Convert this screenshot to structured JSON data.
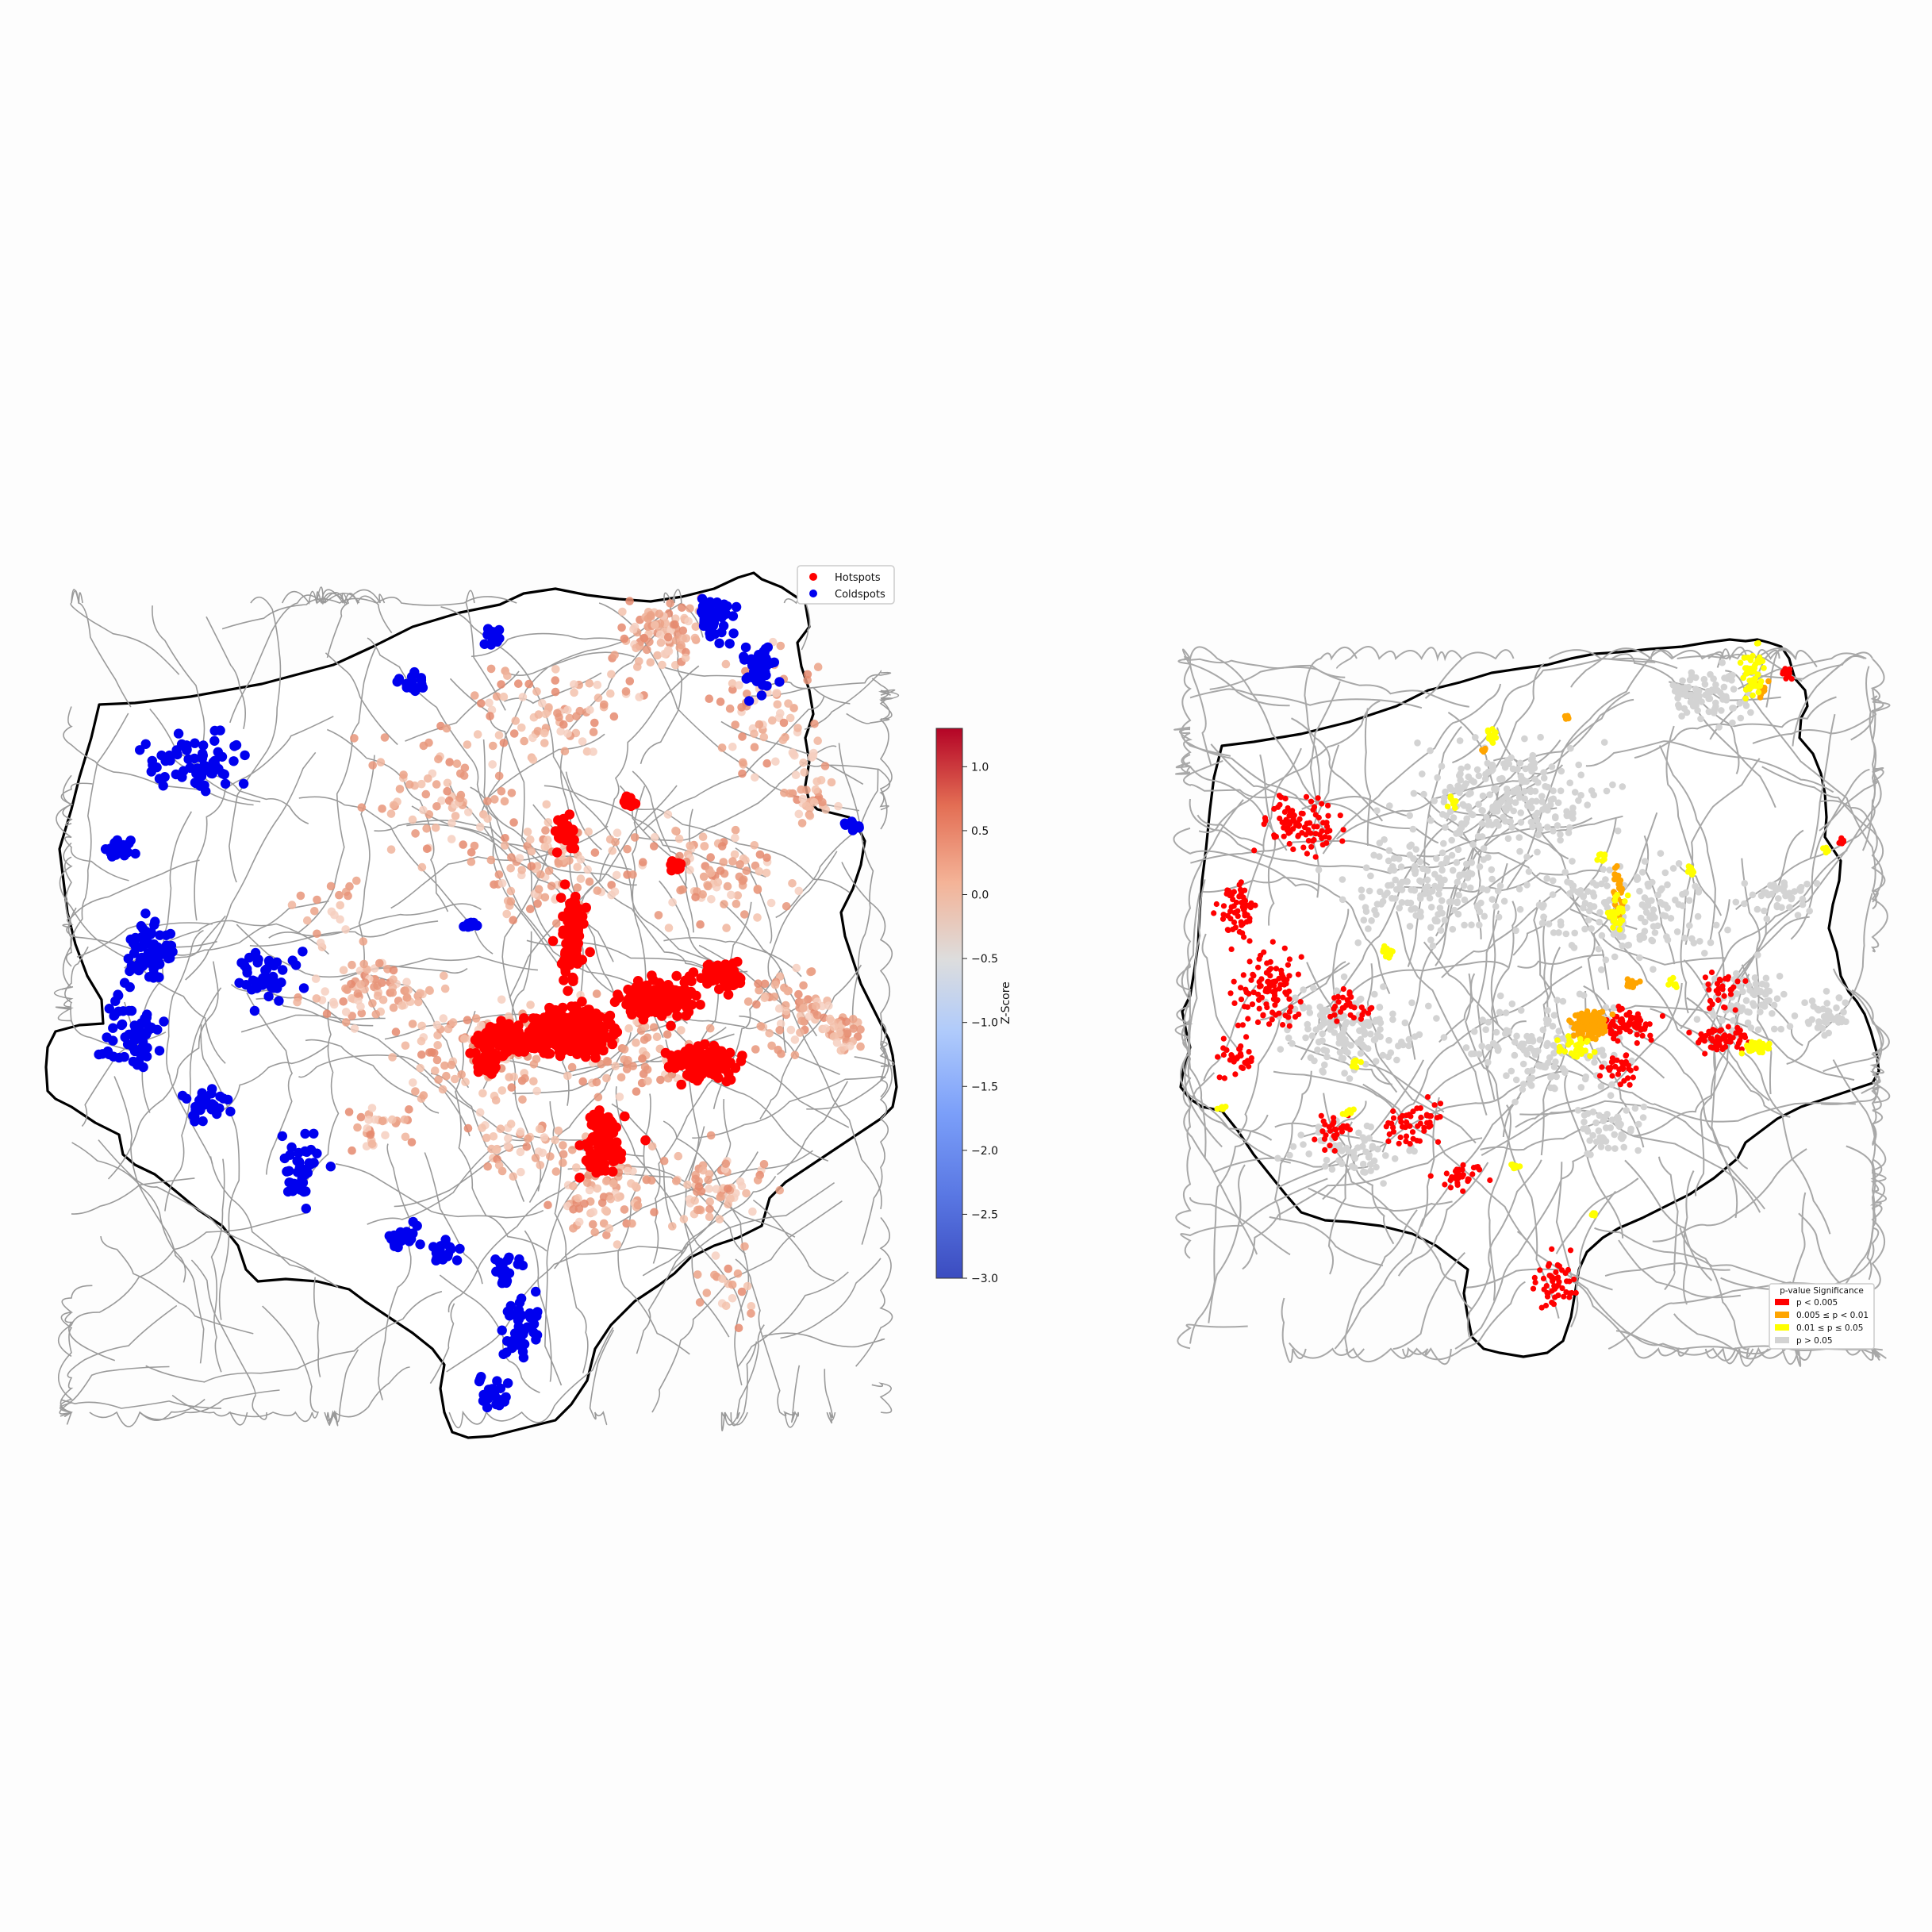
{
  "maps": [
    {
      "panel": "getis-ord-zscore",
      "legend": {
        "items": [
          {
            "label": "Hotspots",
            "color": "#ff0000"
          },
          {
            "label": "Coldspots",
            "color": "#0000ee"
          }
        ]
      },
      "colorbar": {
        "label": "Z-Score",
        "min": -3.0,
        "max": 1.3,
        "colormap": "coolwarm",
        "ticks": [
          "1.0",
          "0.5",
          "0.0",
          "−0.5",
          "−1.0",
          "−1.5",
          "−2.0",
          "−2.5",
          "−3.0"
        ],
        "tick_values": [
          1.0,
          0.5,
          0.0,
          -0.5,
          -1.0,
          -1.5,
          -2.0,
          -2.5,
          -3.0
        ]
      },
      "colors": {
        "hotspot": "#ff0000",
        "coldspot": "#0000ee",
        "mid": "#eaa48a",
        "road": "#9a9a9a",
        "outline": "#000000"
      }
    },
    {
      "panel": "p-value-significance",
      "legend": {
        "title": "p-value Significance",
        "items": [
          {
            "label": "p < 0.005",
            "color": "#ff0000"
          },
          {
            "label": "0.005 ≤ p < 0.01",
            "color": "#ffa500"
          },
          {
            "label": "0.01 ≤ p ≤ 0.05",
            "color": "#ffff00"
          },
          {
            "label": "p > 0.05",
            "color": "#d3d3d3"
          }
        ]
      }
    }
  ]
}
